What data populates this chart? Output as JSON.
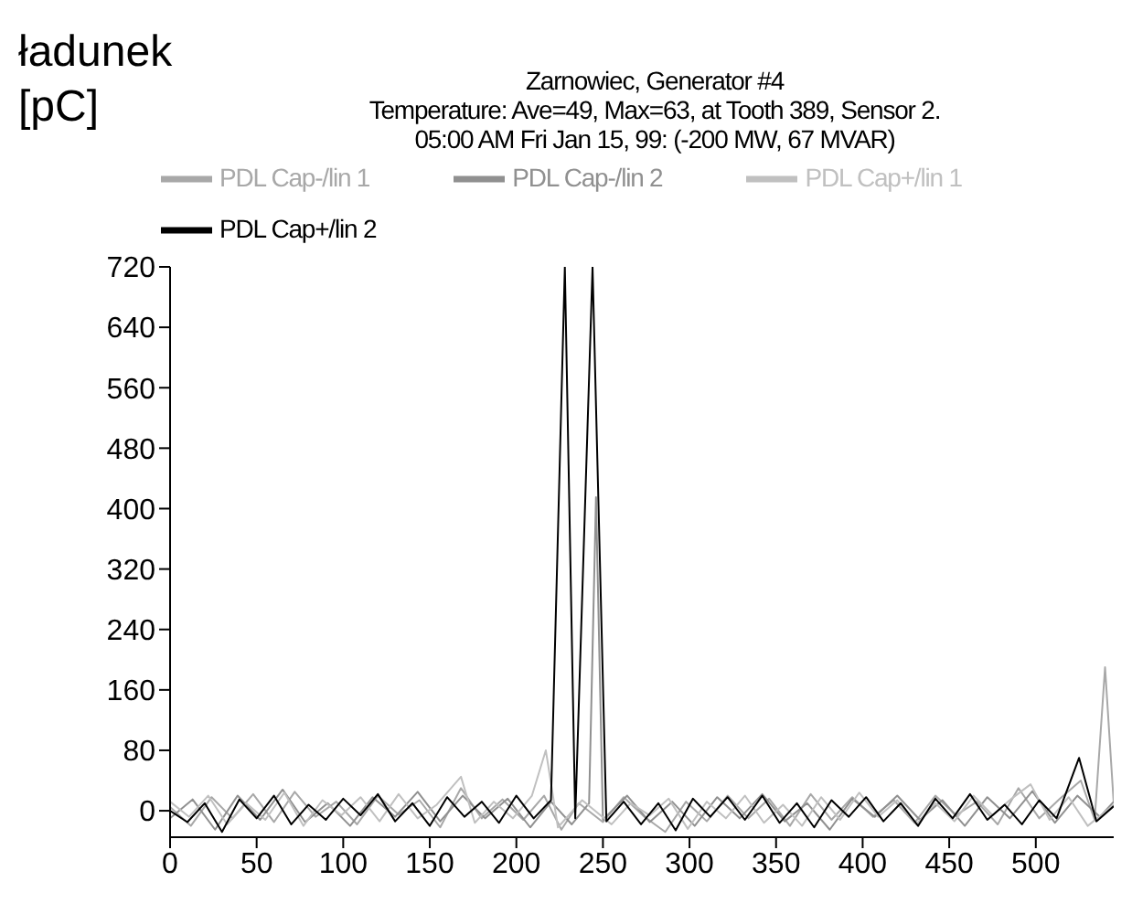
{
  "chart_data": {
    "type": "line",
    "title": "Zarnowiec,  Generator #4",
    "subtitle": "Temperature: Ave=49, Max=63, at Tooth 389, Sensor 2.\n05:00 AM Fri Jan 15, 99:   (-200 MW, 67 MVAR)",
    "ylabel": "ładunek\n[pC]",
    "xlim": [
      0,
      545
    ],
    "ylim": [
      -35,
      720
    ],
    "xticks": [
      0,
      50,
      100,
      150,
      200,
      250,
      300,
      350,
      400,
      450,
      500
    ],
    "yticks": [
      0,
      80,
      160,
      240,
      320,
      400,
      480,
      560,
      640,
      720
    ],
    "legend": "top",
    "marker": "none",
    "line_style": "solid",
    "series": [
      {
        "name": "PDL Cap-/lin 1",
        "color": "#a8a8a8",
        "x": [
          0,
          12,
          24,
          36,
          48,
          60,
          72,
          84,
          96,
          108,
          120,
          132,
          144,
          156,
          168,
          180,
          192,
          204,
          216,
          226,
          236,
          250,
          262,
          274,
          286,
          298,
          310,
          322,
          334,
          346,
          358,
          370,
          382,
          394,
          406,
          418,
          430,
          442,
          454,
          466,
          478,
          490,
          502,
          514,
          526,
          534,
          540,
          545
        ],
        "values": [
          5,
          -20,
          18,
          -10,
          22,
          -15,
          25,
          -8,
          12,
          -18,
          20,
          -5,
          14,
          -22,
          30,
          -10,
          15,
          -12,
          20,
          -25,
          10,
          -15,
          18,
          -8,
          -28,
          12,
          -14,
          20,
          -10,
          16,
          -20,
          22,
          -12,
          18,
          -8,
          14,
          -16,
          20,
          -6,
          12,
          -18,
          30,
          -10,
          16,
          40,
          -12,
          190,
          10
        ]
      },
      {
        "name": "PDL Cap-/lin 2",
        "color": "#909090",
        "x": [
          0,
          13,
          26,
          39,
          52,
          65,
          78,
          91,
          104,
          117,
          130,
          143,
          156,
          169,
          182,
          195,
          208,
          220,
          232,
          242,
          246,
          250,
          264,
          277,
          290,
          303,
          316,
          329,
          342,
          355,
          368,
          381,
          394,
          407,
          420,
          433,
          446,
          459,
          472,
          485,
          498,
          511,
          524,
          537,
          545
        ],
        "values": [
          -10,
          15,
          -25,
          20,
          -12,
          28,
          -15,
          10,
          -20,
          18,
          -8,
          25,
          -14,
          20,
          -10,
          16,
          -22,
          12,
          -18,
          10,
          415,
          -12,
          20,
          -15,
          12,
          -20,
          18,
          -10,
          22,
          -14,
          10,
          -25,
          16,
          -8,
          20,
          -12,
          14,
          -20,
          18,
          -10,
          26,
          -16,
          20,
          -8,
          12
        ]
      },
      {
        "name": "PDL Cap+/lin 1",
        "color": "#c0c0c0",
        "x": [
          0,
          11,
          22,
          33,
          44,
          55,
          66,
          77,
          88,
          99,
          110,
          121,
          132,
          143,
          154,
          168,
          176,
          187,
          198,
          209,
          217,
          224,
          238,
          255,
          266,
          277,
          288,
          299,
          310,
          321,
          332,
          343,
          354,
          365,
          376,
          387,
          398,
          409,
          420,
          431,
          442,
          453,
          464,
          475,
          486,
          497,
          508,
          519,
          530,
          545
        ],
        "values": [
          12,
          -8,
          20,
          -18,
          10,
          -12,
          24,
          -20,
          14,
          -6,
          18,
          -14,
          22,
          -10,
          8,
          45,
          -16,
          12,
          -10,
          20,
          80,
          -22,
          14,
          -18,
          10,
          -6,
          16,
          -24,
          12,
          -10,
          20,
          -16,
          8,
          -20,
          18,
          -12,
          24,
          -8,
          14,
          -18,
          10,
          -14,
          20,
          -6,
          16,
          35,
          -12,
          18,
          -20,
          8
        ]
      },
      {
        "name": "PDL Cap+/lin 2",
        "color": "#000000",
        "x": [
          0,
          10,
          20,
          30,
          40,
          50,
          60,
          70,
          80,
          90,
          100,
          110,
          120,
          130,
          140,
          150,
          160,
          170,
          180,
          190,
          200,
          210,
          220,
          228,
          234,
          244,
          252,
          262,
          272,
          282,
          292,
          302,
          312,
          322,
          332,
          342,
          352,
          362,
          372,
          382,
          392,
          402,
          412,
          422,
          432,
          442,
          452,
          462,
          472,
          482,
          492,
          502,
          512,
          525,
          535,
          545
        ],
        "values": [
          0,
          -15,
          10,
          -28,
          15,
          -10,
          20,
          -18,
          8,
          -12,
          16,
          -6,
          22,
          -14,
          10,
          -20,
          18,
          -8,
          12,
          -16,
          20,
          -10,
          14,
          720,
          -10,
          720,
          -14,
          12,
          -18,
          10,
          -26,
          16,
          -8,
          18,
          -12,
          20,
          -16,
          10,
          -22,
          14,
          -8,
          18,
          -14,
          10,
          -20,
          16,
          -10,
          22,
          -12,
          8,
          -18,
          14,
          -10,
          70,
          -14,
          6
        ]
      }
    ]
  }
}
